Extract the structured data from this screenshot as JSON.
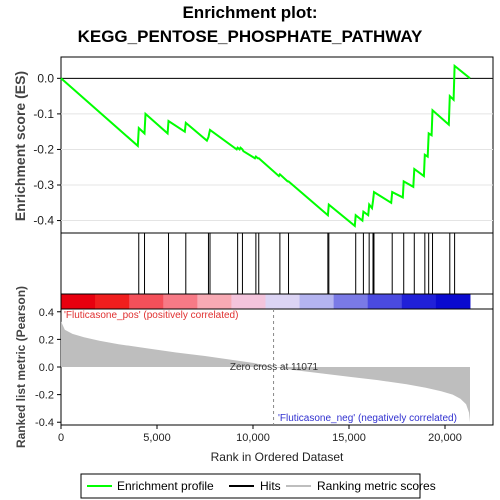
{
  "title_line1": "Enrichment plot:",
  "title_line2": "KEGG_PENTOSE_PHOSPHATE_PATHWAY",
  "chart_data": {
    "type": "line",
    "es_ylabel": "Enrichment score (ES)",
    "es_yticks": [
      "0.0",
      "-0.1",
      "-0.2",
      "-0.3",
      "-0.4"
    ],
    "es_ylim": [
      -0.435,
      0.06
    ],
    "x_ticks": [
      "0",
      "5,000",
      "10,000",
      "15,000",
      "20,000"
    ],
    "x_ticks_values": [
      0,
      5000,
      10000,
      15000,
      20000
    ],
    "xlim": [
      0,
      22500
    ],
    "xlabel": "Rank in Ordered Dataset",
    "rank_ylabel": "Ranked list metric (Pearson)",
    "rank_yticks": [
      "0.4",
      "0.2",
      "0.0",
      "-0.2",
      "-0.4"
    ],
    "rank_yticks_values": [
      0.4,
      0.2,
      0.0,
      -0.2,
      -0.4
    ],
    "rank_ylim": [
      -0.42,
      0.42
    ],
    "pos_label": "'Fluticasone_pos' (positively correlated)",
    "neg_label": "'Fluticasone_neg' (negatively correlated)",
    "zero_cross_label": "Zero cross at 11071",
    "n_genes": 21300,
    "zero_cross": 11071,
    "series": [
      {
        "name": "Enrichment profile",
        "color": "#00ff00",
        "x": [
          0,
          4000,
          4050,
          4350,
          4400,
          5550,
          5600,
          6450,
          6500,
          7600,
          7680,
          7720,
          7760,
          9150,
          9200,
          9300,
          9350,
          9450,
          9500,
          10100,
          10150,
          10250,
          10300,
          11350,
          11400,
          11800,
          11850,
          13900,
          13950,
          15300,
          15350,
          15700,
          15750,
          16000,
          16050,
          16200,
          16250,
          16300,
          17200,
          17250,
          17800,
          17850,
          18350,
          18400,
          18900,
          18950,
          19100,
          19150,
          19300,
          19350,
          20200,
          20250,
          20450,
          20500,
          21300
        ],
        "y": [
          0.0,
          -0.19,
          -0.14,
          -0.155,
          -0.1,
          -0.155,
          -0.12,
          -0.15,
          -0.125,
          -0.175,
          -0.165,
          -0.155,
          -0.145,
          -0.2,
          -0.195,
          -0.2,
          -0.195,
          -0.2,
          -0.205,
          -0.225,
          -0.22,
          -0.225,
          -0.225,
          -0.275,
          -0.27,
          -0.29,
          -0.29,
          -0.385,
          -0.355,
          -0.415,
          -0.385,
          -0.4,
          -0.375,
          -0.385,
          -0.355,
          -0.365,
          -0.345,
          -0.32,
          -0.35,
          -0.32,
          -0.335,
          -0.29,
          -0.305,
          -0.255,
          -0.275,
          -0.215,
          -0.22,
          -0.155,
          -0.16,
          -0.09,
          -0.13,
          -0.05,
          -0.06,
          0.035,
          0.0
        ]
      },
      {
        "name": "Ranking metric scores",
        "color": "#bebebe",
        "x": [
          0,
          200,
          600,
          1200,
          2000,
          3000,
          4500,
          6000,
          7500,
          9000,
          10000,
          11071,
          12000,
          13500,
          15000,
          16500,
          18000,
          19000,
          19800,
          20400,
          20800,
          21100,
          21250,
          21300
        ],
        "y": [
          0.33,
          0.27,
          0.24,
          0.215,
          0.19,
          0.165,
          0.135,
          0.105,
          0.08,
          0.05,
          0.03,
          0.0,
          -0.02,
          -0.045,
          -0.07,
          -0.095,
          -0.125,
          -0.15,
          -0.175,
          -0.2,
          -0.23,
          -0.27,
          -0.33,
          -0.4
        ]
      }
    ],
    "hits": [
      4050,
      4350,
      5600,
      6500,
      7680,
      7760,
      9200,
      9450,
      10150,
      10300,
      11400,
      11850,
      13900,
      13950,
      15350,
      15750,
      16050,
      16250,
      16300,
      17250,
      17850,
      18400,
      18950,
      19150,
      19350,
      20250,
      20500
    ],
    "heat_colors": [
      "#e8000f",
      "#f01e1e",
      "#f4505a",
      "#f77a86",
      "#f8aab4",
      "#f4c4dc",
      "#dcd4f4",
      "#b4b4f0",
      "#7a7ae6",
      "#4a4ae0",
      "#2020d8",
      "#0a0ad0"
    ],
    "legend": [
      {
        "label": "Enrichment profile",
        "color": "#00ff00"
      },
      {
        "label": "Hits",
        "color": "#000000"
      },
      {
        "label": "Ranking metric scores",
        "color": "#bebebe"
      }
    ],
    "legend_position": "bottom"
  }
}
